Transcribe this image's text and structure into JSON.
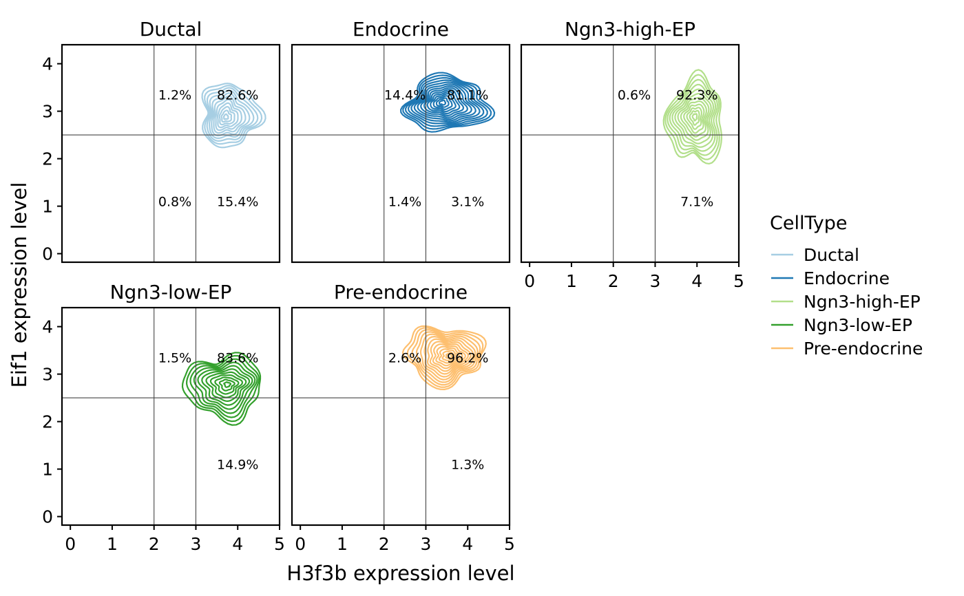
{
  "chart_data": {
    "type": "contour",
    "xlabel": "H3f3b expression level",
    "ylabel": "Eif1 expression level",
    "xlim": [
      -0.2,
      5
    ],
    "ylim": [
      -0.18,
      4.4
    ],
    "xticks": [
      "0",
      "1",
      "2",
      "3",
      "4",
      "5"
    ],
    "yticks": [
      "0",
      "1",
      "2",
      "3",
      "4"
    ],
    "x_threshold_left": 2,
    "x_threshold_right": 3,
    "y_threshold": 2.5,
    "legend": {
      "title": "CellType",
      "position": "right",
      "entries": [
        "Ductal",
        "Endocrine",
        "Ngn3-high-EP",
        "Ngn3-low-EP",
        "Pre-endocrine"
      ]
    },
    "panels": [
      {
        "title": "Ductal",
        "color": "#A6CEE3",
        "center": [
          3.72,
          2.88
        ],
        "spread": [
          0.75,
          0.72
        ],
        "levels": 11,
        "shape_seed": 1,
        "quadrant_labels": {
          "upper_left": "1.2%",
          "upper_right": "82.6%",
          "lower_left": "0.8%",
          "lower_right": "15.4%"
        }
      },
      {
        "title": "Endocrine",
        "color": "#1F78B4",
        "center": [
          3.4,
          3.18
        ],
        "spread": [
          1.05,
          0.62
        ],
        "levels": 14,
        "shape_seed": 2,
        "quadrant_labels": {
          "upper_left": "14.4%",
          "upper_right": "81.1%",
          "lower_left": "1.4%",
          "lower_right": "3.1%"
        }
      },
      {
        "title": "Ngn3-high-EP",
        "color": "#B2DF8A",
        "center": [
          3.95,
          2.88
        ],
        "spread": [
          0.72,
          0.95
        ],
        "levels": 12,
        "shape_seed": 3,
        "quadrant_labels": {
          "upper_left": "0.6%",
          "upper_right": "92.3%",
          "lower_left": "",
          "lower_right": "7.1%"
        }
      },
      {
        "title": "Ngn3-low-EP",
        "color": "#33A02C",
        "center": [
          3.75,
          2.78
        ],
        "spread": [
          1.0,
          0.72
        ],
        "levels": 11,
        "shape_seed": 4,
        "quadrant_labels": {
          "upper_left": "1.5%",
          "upper_right": "83.6%",
          "lower_left": "",
          "lower_right": "14.9%"
        }
      },
      {
        "title": "Pre-endocrine",
        "color": "#FDBF6F",
        "center": [
          3.55,
          3.38
        ],
        "spread": [
          1.0,
          0.65
        ],
        "levels": 13,
        "shape_seed": 5,
        "quadrant_labels": {
          "upper_left": "2.6%",
          "upper_right": "96.2%",
          "lower_left": "",
          "lower_right": "1.3%"
        }
      }
    ]
  }
}
